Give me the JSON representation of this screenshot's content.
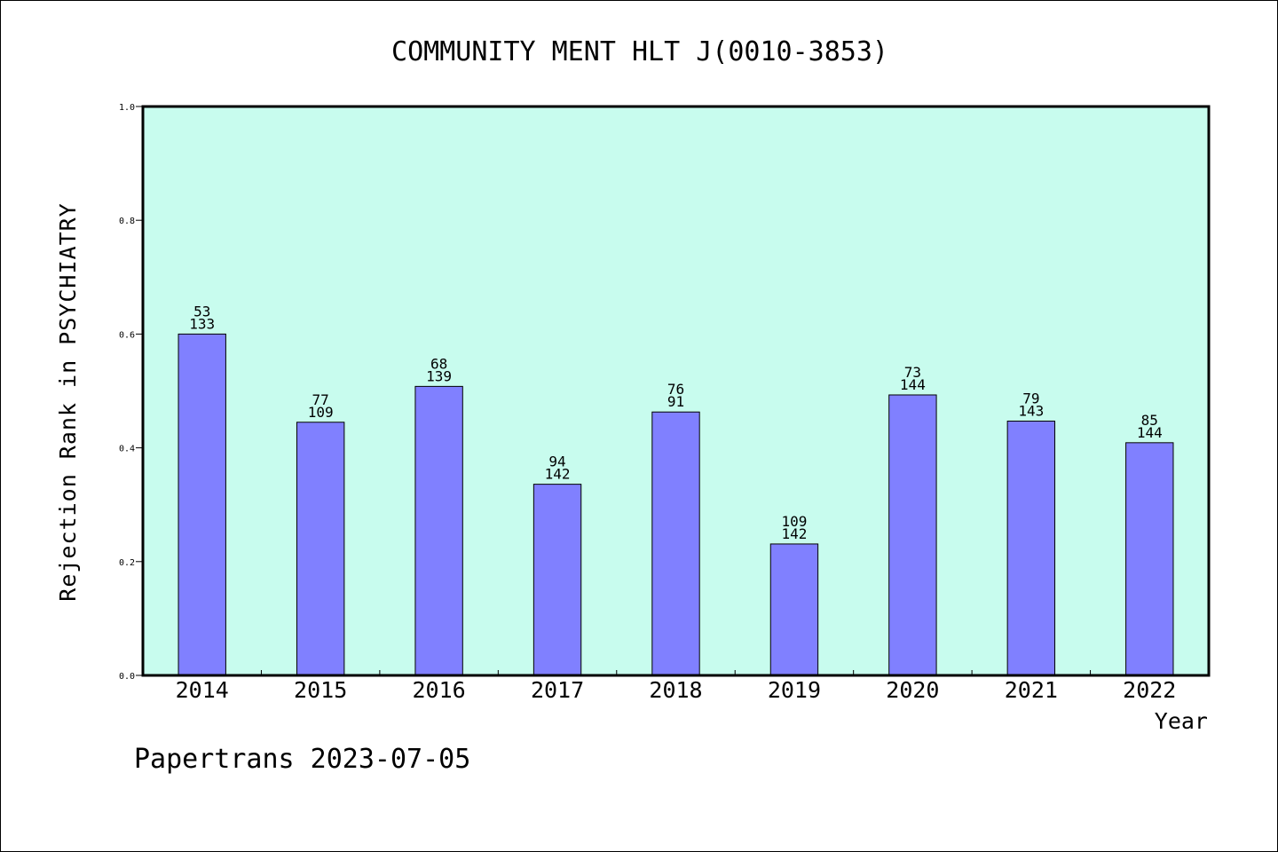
{
  "colors": {
    "plot_background": "#c8fcee",
    "bar_fill": "#8080ff",
    "frame": "#000000"
  },
  "footer": "Papertrans 2023-07-05",
  "chart_data": {
    "type": "bar",
    "title": "COMMUNITY MENT HLT J(0010-3853)",
    "xlabel": "Year",
    "ylabel": "Rejection Rank in PSYCHIATRY",
    "ylim": [
      0,
      1.0
    ],
    "yticks": [
      "0.0",
      "0.2",
      "0.4",
      "0.6",
      "0.8",
      "1.0"
    ],
    "grid": false,
    "categories": [
      "2014",
      "2015",
      "2016",
      "2017",
      "2018",
      "2019",
      "2020",
      "2021",
      "2022"
    ],
    "values": [
      0.6,
      0.445,
      0.508,
      0.336,
      0.463,
      0.231,
      0.493,
      0.447,
      0.409
    ],
    "labels_top": [
      "53",
      "77",
      "68",
      "94",
      "76",
      "109",
      "73",
      "79",
      "85"
    ],
    "labels_bottom": [
      "133",
      "109",
      "139",
      "142",
      "91",
      "142",
      "144",
      "143",
      "144"
    ]
  }
}
